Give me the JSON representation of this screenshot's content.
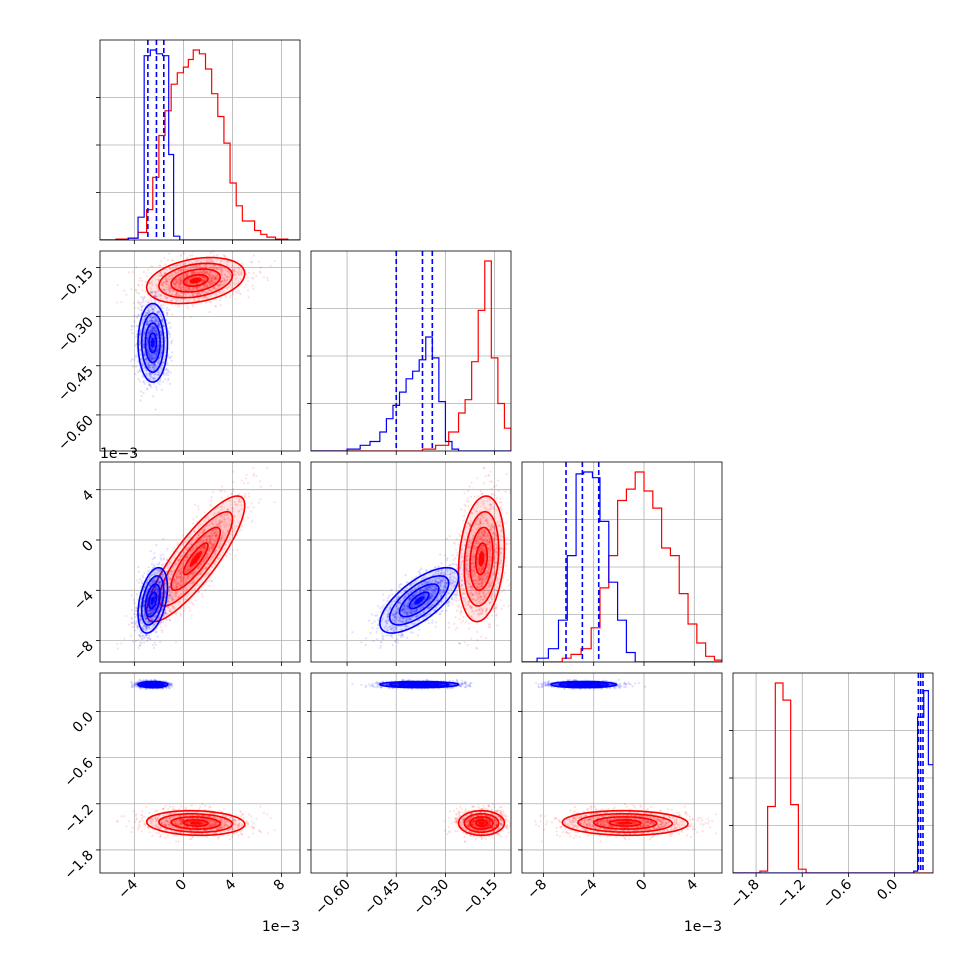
{
  "chart_data": {
    "type": "corner",
    "parameters": [
      {
        "ticks": [
          -4,
          0,
          4,
          8
        ],
        "tick_labels": [
          "−4",
          "0",
          "4",
          "8"
        ],
        "offset_text": "1e−3",
        "range": [
          -6.8,
          9.5
        ]
      },
      {
        "ticks": [
          -0.6,
          -0.45,
          -0.3,
          -0.15
        ],
        "tick_labels": [
          "−0.60",
          "−0.45",
          "−0.30",
          "−0.15"
        ],
        "offset_text": "",
        "range": [
          -0.71,
          -0.1
        ]
      },
      {
        "ticks": [
          -8,
          -4,
          0,
          4
        ],
        "tick_labels": [
          "−8",
          "−4",
          "0",
          "4"
        ],
        "offset_text": "1e−3",
        "range": [
          -9.7,
          6.2
        ]
      },
      {
        "ticks": [
          -1.8,
          -1.2,
          -0.6,
          0.0
        ],
        "tick_labels": [
          "−1.8",
          "−1.2",
          "−0.6",
          "0.0"
        ],
        "offset_text": "",
        "range": [
          -2.1,
          0.5
        ]
      }
    ],
    "series": [
      {
        "color": "#ff0000",
        "means": [
          1.0,
          -0.19,
          -1.5,
          -1.45
        ],
        "stds": [
          2.0,
          0.035,
          2.5,
          0.08
        ],
        "correlation": [
          [
            1,
            0.3,
            0.85,
            -0.1
          ],
          [
            0.3,
            1,
            0.2,
            0
          ],
          [
            0.85,
            0.2,
            1,
            -0.05
          ],
          [
            -0.1,
            0,
            -0.05,
            1
          ]
        ],
        "quantile_lines": []
      },
      {
        "color": "#0000ff",
        "means": [
          -2.5,
          -0.38,
          -4.8,
          0.35
        ],
        "stds": [
          0.6,
          0.06,
          1.3,
          0.02
        ],
        "correlation": [
          [
            1,
            0,
            0.4,
            0
          ],
          [
            0,
            1,
            0.7,
            0
          ],
          [
            0.4,
            0.7,
            1,
            0
          ],
          [
            0,
            0,
            0,
            1
          ]
        ],
        "quantile_lines": [
          [
            -2.9,
            -2.2,
            -1.6
          ],
          [
            -0.45,
            -0.37,
            -0.34
          ],
          [
            -6.2,
            -4.9,
            -3.6
          ],
          [
            0.31,
            0.34,
            0.37
          ]
        ]
      }
    ],
    "histograms": [
      {
        "red": [
          [
            -6.8,
            0
          ],
          [
            -5.5,
            0.005
          ],
          [
            -4.5,
            0.01
          ],
          [
            -3.7,
            0.04
          ],
          [
            -3.0,
            0.16
          ],
          [
            -2.5,
            0.33
          ],
          [
            -2.0,
            0.55
          ],
          [
            -1.5,
            0.68
          ],
          [
            -1.0,
            0.82
          ],
          [
            -0.5,
            0.88
          ],
          [
            0.0,
            0.91
          ],
          [
            0.4,
            0.95
          ],
          [
            0.8,
            1.0
          ],
          [
            1.3,
            0.98
          ],
          [
            1.8,
            0.9
          ],
          [
            2.3,
            0.77
          ],
          [
            2.8,
            0.65
          ],
          [
            3.3,
            0.51
          ],
          [
            3.8,
            0.3
          ],
          [
            4.3,
            0.18
          ],
          [
            4.8,
            0.1
          ],
          [
            5.3,
            0.1
          ],
          [
            5.8,
            0.05
          ],
          [
            6.3,
            0.03
          ],
          [
            6.8,
            0.015
          ],
          [
            7.5,
            0.005
          ],
          [
            8.5,
            0
          ]
        ],
        "blue": [
          [
            -6.8,
            0
          ],
          [
            -4.5,
            0.01
          ],
          [
            -3.7,
            0.12
          ],
          [
            -3.2,
            0.97
          ],
          [
            -2.7,
            1.0
          ],
          [
            -2.2,
            0.98
          ],
          [
            -1.7,
            0.97
          ],
          [
            -1.2,
            0.45
          ],
          [
            -0.8,
            0.02
          ],
          [
            -0.3,
            0
          ],
          [
            9.5,
            0
          ]
        ]
      },
      {
        "red": [
          [
            -0.71,
            0
          ],
          [
            -0.37,
            0.01
          ],
          [
            -0.33,
            0.03
          ],
          [
            -0.29,
            0.1
          ],
          [
            -0.26,
            0.2
          ],
          [
            -0.24,
            0.27
          ],
          [
            -0.22,
            0.47
          ],
          [
            -0.2,
            0.74
          ],
          [
            -0.18,
            1.0
          ],
          [
            -0.16,
            0.49
          ],
          [
            -0.14,
            0.25
          ],
          [
            -0.12,
            0.12
          ],
          [
            -0.1,
            0
          ]
        ],
        "blue": [
          [
            -0.71,
            0
          ],
          [
            -0.6,
            0.01
          ],
          [
            -0.56,
            0.03
          ],
          [
            -0.53,
            0.05
          ],
          [
            -0.5,
            0.1
          ],
          [
            -0.48,
            0.17
          ],
          [
            -0.46,
            0.24
          ],
          [
            -0.44,
            0.31
          ],
          [
            -0.42,
            0.38
          ],
          [
            -0.4,
            0.42
          ],
          [
            -0.38,
            0.48
          ],
          [
            -0.36,
            0.6
          ],
          [
            -0.34,
            0.49
          ],
          [
            -0.32,
            0.26
          ],
          [
            -0.3,
            0.05
          ],
          [
            -0.28,
            0.01
          ],
          [
            -0.26,
            0
          ],
          [
            -0.1,
            0
          ]
        ]
      },
      {
        "red": [
          [
            -9.7,
            0
          ],
          [
            -6.5,
            0.02
          ],
          [
            -5.8,
            0.04
          ],
          [
            -5.0,
            0.07
          ],
          [
            -4.2,
            0.18
          ],
          [
            -3.5,
            0.39
          ],
          [
            -2.8,
            0.56
          ],
          [
            -2.1,
            0.85
          ],
          [
            -1.4,
            0.91
          ],
          [
            -0.7,
            1.0
          ],
          [
            0.0,
            0.9
          ],
          [
            0.7,
            0.81
          ],
          [
            1.4,
            0.6
          ],
          [
            2.1,
            0.56
          ],
          [
            2.8,
            0.36
          ],
          [
            3.5,
            0.2
          ],
          [
            4.2,
            0.1
          ],
          [
            4.9,
            0.03
          ],
          [
            5.6,
            0.01
          ],
          [
            6.2,
            0
          ]
        ],
        "blue": [
          [
            -9.7,
            0
          ],
          [
            -8.5,
            0.02
          ],
          [
            -7.6,
            0.07
          ],
          [
            -6.8,
            0.22
          ],
          [
            -6.1,
            0.56
          ],
          [
            -5.4,
            0.99
          ],
          [
            -4.8,
            1.0
          ],
          [
            -4.1,
            0.97
          ],
          [
            -3.5,
            0.74
          ],
          [
            -2.8,
            0.42
          ],
          [
            -2.1,
            0.22
          ],
          [
            -1.4,
            0.05
          ],
          [
            -0.7,
            0
          ],
          [
            6.2,
            0
          ]
        ]
      },
      {
        "red": [
          [
            -2.1,
            0
          ],
          [
            -1.75,
            0.01
          ],
          [
            -1.65,
            0.35
          ],
          [
            -1.55,
            1.0
          ],
          [
            -1.45,
            0.91
          ],
          [
            -1.35,
            0.36
          ],
          [
            -1.25,
            0.02
          ],
          [
            -1.15,
            0
          ],
          [
            0.5,
            0
          ]
        ],
        "blue": [
          [
            -2.1,
            0
          ],
          [
            0.25,
            0.01
          ],
          [
            0.3,
            0.82
          ],
          [
            0.38,
            0.96
          ],
          [
            0.44,
            0.57
          ],
          [
            0.5,
            0.57
          ]
        ]
      }
    ]
  }
}
